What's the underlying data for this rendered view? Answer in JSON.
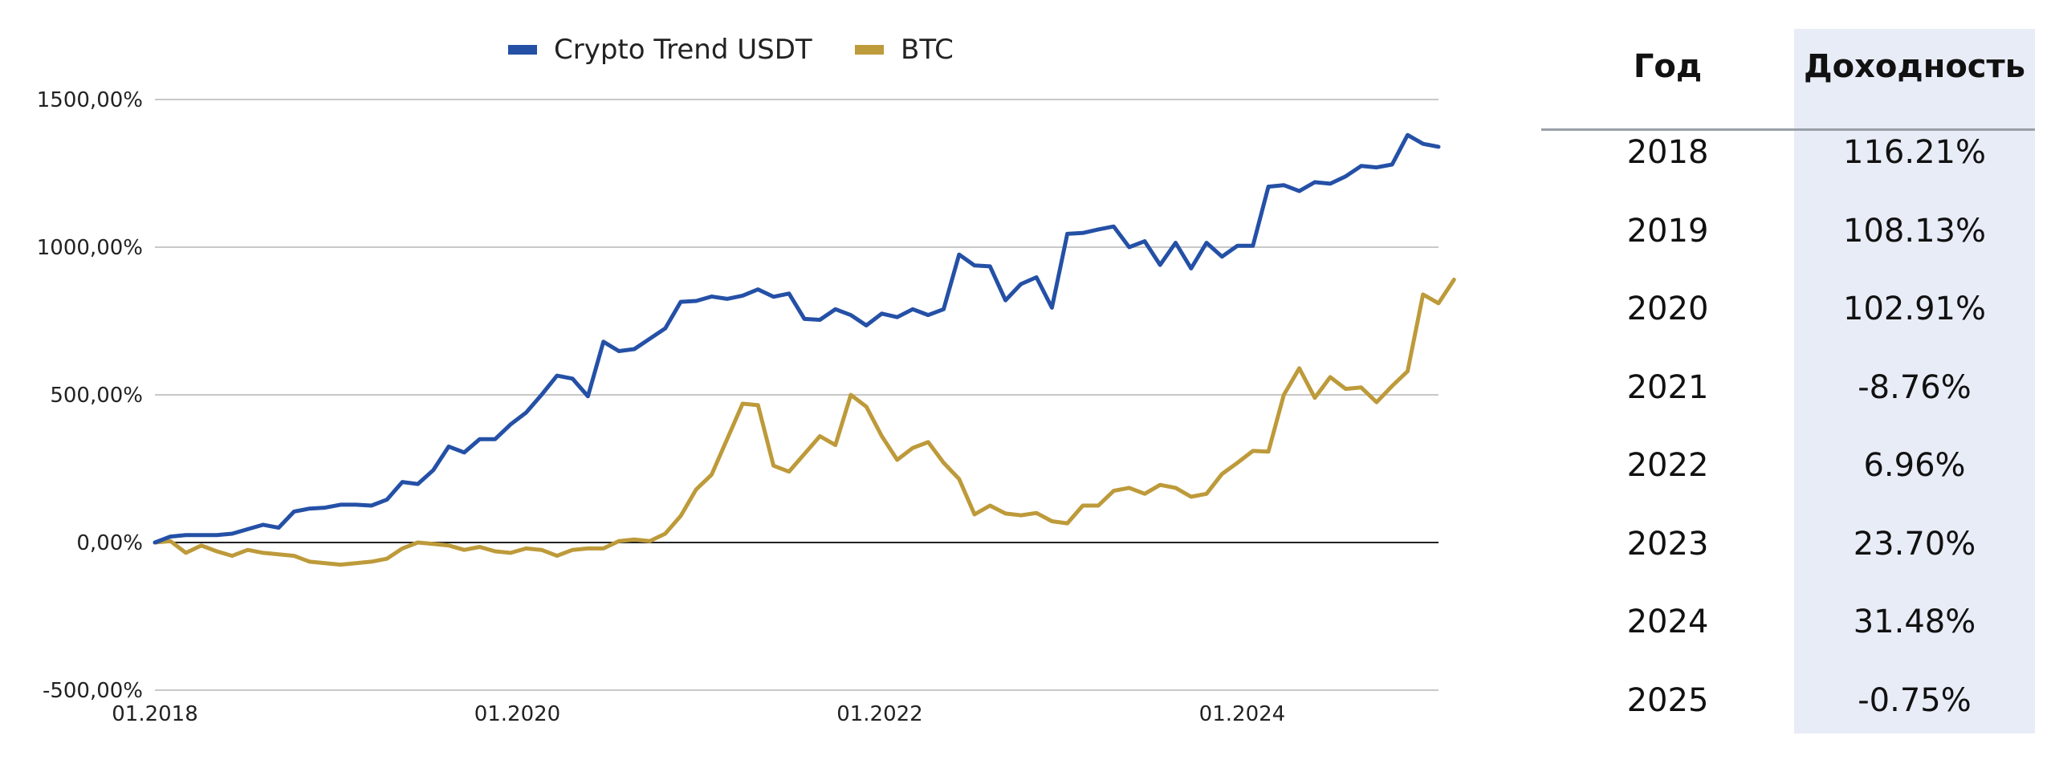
{
  "chart_data": {
    "type": "line",
    "series": [
      {
        "name": "Crypto Trend USDT",
        "color": "#2450a6",
        "values": [
          0,
          20,
          25,
          25,
          25,
          30,
          45,
          60,
          50,
          105,
          115,
          118,
          128,
          128,
          125,
          145,
          205,
          198,
          245,
          325,
          305,
          350,
          350,
          400,
          440,
          500,
          565,
          555,
          495,
          680,
          648,
          655,
          690,
          725,
          815,
          818,
          833,
          825,
          836,
          857,
          832,
          843,
          757,
          754,
          790,
          770,
          735,
          775,
          763,
          790,
          770,
          790,
          975,
          938,
          935,
          820,
          875,
          898,
          795,
          1045,
          1048,
          1060,
          1070,
          1000,
          1020,
          940,
          1015,
          928,
          1015,
          968,
          1005,
          1005,
          1205,
          1210,
          1190,
          1220,
          1215,
          1240,
          1275,
          1270,
          1280,
          1380,
          1350,
          1340
        ]
      },
      {
        "name": "BTC",
        "color": "#bd9a3a",
        "values": [
          0,
          5,
          -35,
          -10,
          -30,
          -45,
          -25,
          -35,
          -40,
          -45,
          -65,
          -70,
          -75,
          -70,
          -65,
          -55,
          -20,
          0,
          -5,
          -10,
          -25,
          -15,
          -30,
          -35,
          -20,
          -25,
          -45,
          -25,
          -20,
          -20,
          5,
          10,
          5,
          30,
          90,
          180,
          230,
          350,
          470,
          465,
          260,
          240,
          300,
          360,
          330,
          500,
          460,
          360,
          280,
          320,
          340,
          270,
          215,
          95,
          125,
          98,
          92,
          100,
          72,
          65,
          125,
          125,
          175,
          185,
          165,
          195,
          185,
          155,
          165,
          232,
          270,
          310,
          308,
          500,
          590,
          490,
          560,
          520,
          525,
          475,
          530,
          580,
          840,
          810,
          890
        ]
      }
    ],
    "x_start": "01.2018",
    "x_ticks": [
      "01.2018",
      "01.2020",
      "01.2022",
      "01.2024"
    ],
    "y_ticks": [
      "1500,00%",
      "1000,00%",
      "500,00%",
      "0,00%",
      "-500,00%"
    ],
    "ylim": [
      -500,
      1500
    ],
    "grid": true,
    "legend": "top"
  },
  "table": {
    "headers": {
      "year": "Год",
      "return": "Доходность"
    },
    "rows": [
      {
        "year": "2018",
        "return": "116.21%"
      },
      {
        "year": "2019",
        "return": "108.13%"
      },
      {
        "year": "2020",
        "return": "102.91%"
      },
      {
        "year": "2021",
        "return": "-8.76%"
      },
      {
        "year": "2022",
        "return": "6.96%"
      },
      {
        "year": "2023",
        "return": "23.70%"
      },
      {
        "year": "2024",
        "return": "31.48%"
      },
      {
        "year": "2025",
        "return": "-0.75%"
      }
    ]
  }
}
